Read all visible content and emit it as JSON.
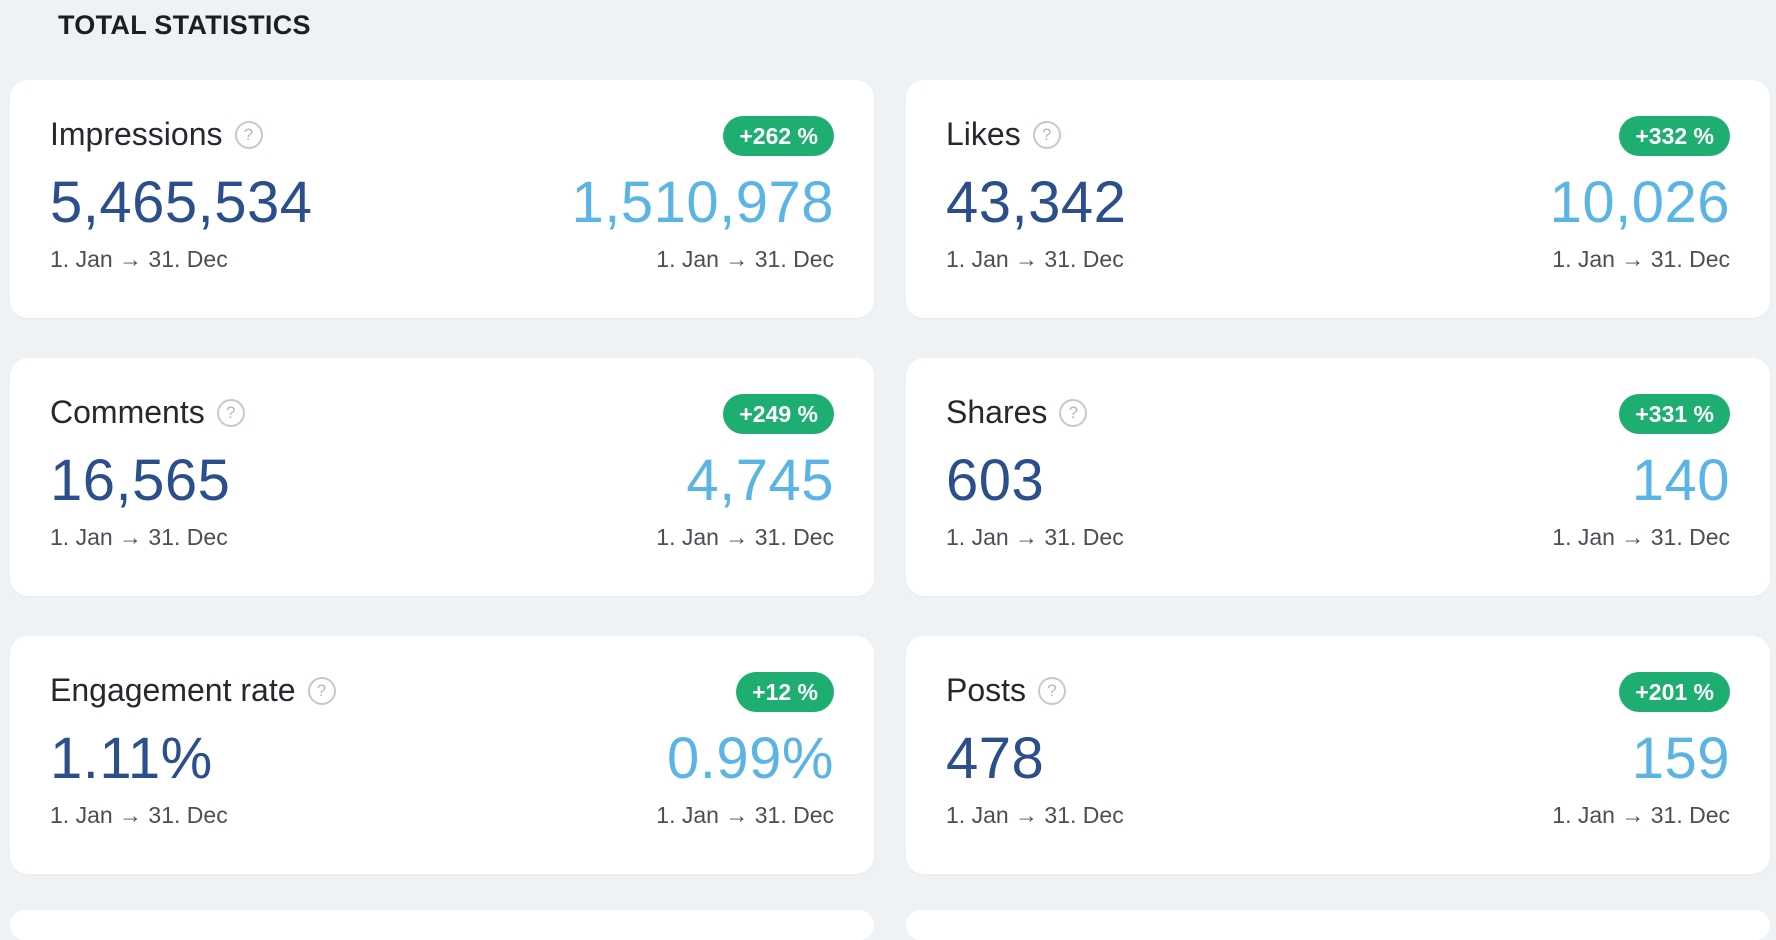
{
  "section": {
    "title": "TOTAL STATISTICS"
  },
  "help_icon_glyph": "?",
  "colors": {
    "background": "#eef2f5",
    "current_value": "#2b4f8c",
    "previous_value": "#5bb4e6",
    "badge": "#1fae72"
  },
  "cards": [
    {
      "title": "Impressions",
      "badge": "+262 %",
      "current_value": "5,465,534",
      "current_period": "1. Jan → 31. Dec",
      "previous_value": "1,510,978",
      "previous_period": "1. Jan → 31. Dec"
    },
    {
      "title": "Likes",
      "badge": "+332 %",
      "current_value": "43,342",
      "current_period": "1. Jan → 31. Dec",
      "previous_value": "10,026",
      "previous_period": "1. Jan → 31. Dec"
    },
    {
      "title": "Comments",
      "badge": "+249 %",
      "current_value": "16,565",
      "current_period": "1. Jan → 31. Dec",
      "previous_value": "4,745",
      "previous_period": "1. Jan → 31. Dec"
    },
    {
      "title": "Shares",
      "badge": "+331 %",
      "current_value": "603",
      "current_period": "1. Jan → 31. Dec",
      "previous_value": "140",
      "previous_period": "1. Jan → 31. Dec"
    },
    {
      "title": "Engagement rate",
      "badge": "+12 %",
      "current_value": "1.11%",
      "current_period": "1. Jan → 31. Dec",
      "previous_value": "0.99%",
      "previous_period": "1. Jan → 31. Dec"
    },
    {
      "title": "Posts",
      "badge": "+201 %",
      "current_value": "478",
      "current_period": "1. Jan → 31. Dec",
      "previous_value": "159",
      "previous_period": "1. Jan → 31. Dec"
    }
  ]
}
